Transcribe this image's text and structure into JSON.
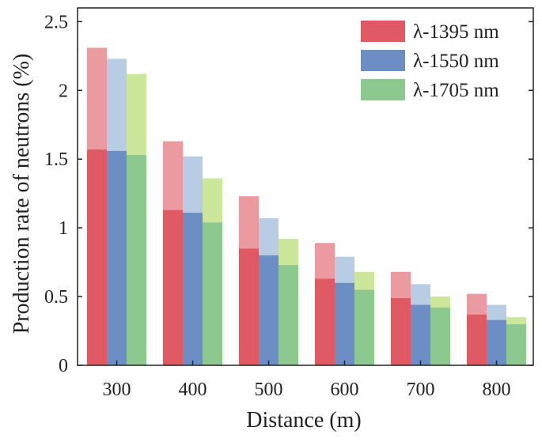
{
  "chart_data": {
    "type": "bar",
    "subtype": "grouped-stacked",
    "title": "",
    "xlabel": "Distance (m)",
    "ylabel": "Production rate of neutrons (%)",
    "ylim": [
      0,
      2.6
    ],
    "yticks": [
      0,
      0.5,
      1,
      1.5,
      2,
      2.5
    ],
    "ytick_labels": [
      "0",
      "0.5",
      "1",
      "1.5",
      "2",
      "2.5"
    ],
    "categories": [
      "300",
      "400",
      "500",
      "600",
      "700",
      "800"
    ],
    "grid": false,
    "legend_position": "top-right",
    "series": [
      {
        "name": "λ-1395 nm",
        "color": "#e05a64",
        "light_color": "#eb9aa0",
        "base_values": [
          1.57,
          1.13,
          0.85,
          0.63,
          0.49,
          0.37
        ],
        "total_values": [
          2.31,
          1.63,
          1.23,
          0.89,
          0.68,
          0.52
        ]
      },
      {
        "name": "λ-1550 nm",
        "color": "#6c8ec4",
        "light_color": "#b8cce4",
        "base_values": [
          1.56,
          1.11,
          0.8,
          0.6,
          0.44,
          0.33
        ],
        "total_values": [
          2.23,
          1.52,
          1.07,
          0.79,
          0.59,
          0.44
        ]
      },
      {
        "name": "λ-1705 nm",
        "color": "#8dc98f",
        "light_color": "#cce79a",
        "base_values": [
          1.53,
          1.04,
          0.73,
          0.55,
          0.42,
          0.3
        ],
        "total_values": [
          2.12,
          1.36,
          0.92,
          0.68,
          0.5,
          0.35
        ]
      }
    ]
  }
}
